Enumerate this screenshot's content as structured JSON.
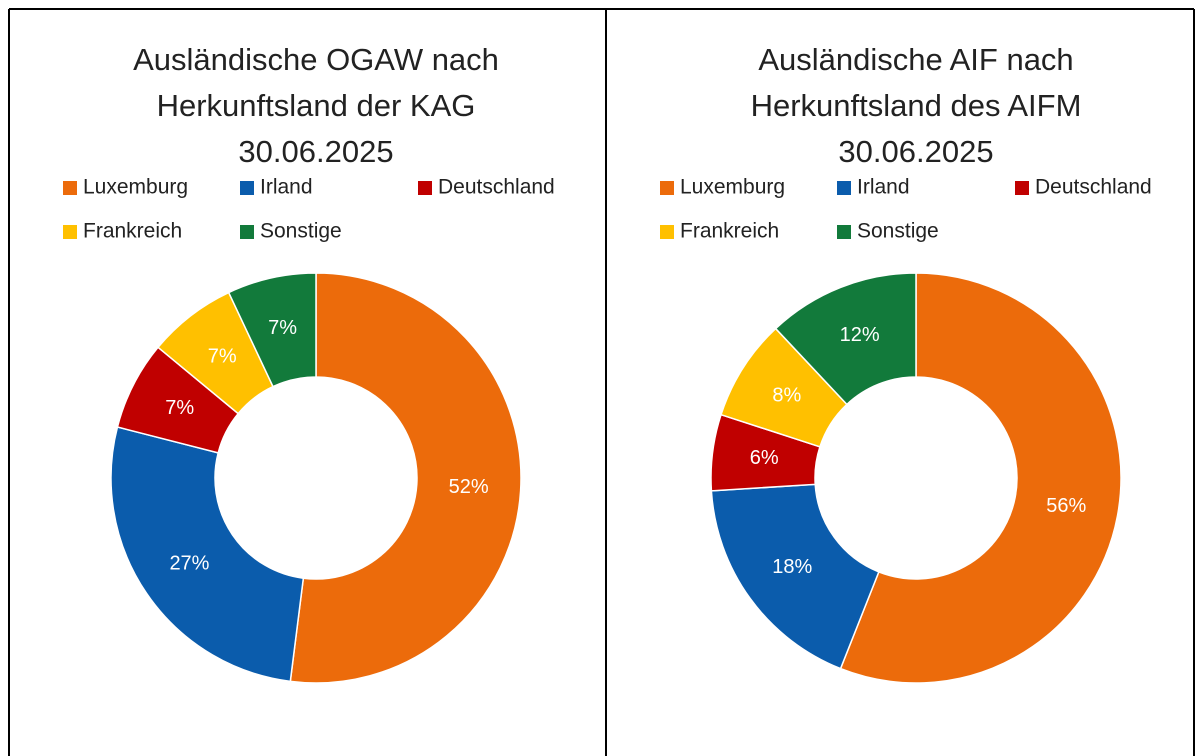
{
  "chart_data": [
    {
      "type": "donut",
      "title": [
        "Ausländische OGAW nach",
        "Herkunftsland der KAG",
        "30.06.2025"
      ],
      "categories": [
        "Luxemburg",
        "Irland",
        "Deutschland",
        "Frankreich",
        "Sonstige"
      ],
      "values": [
        52,
        27,
        7,
        7,
        7
      ],
      "value_labels": [
        "52%",
        "27%",
        "7%",
        "7%",
        "7%"
      ],
      "colors": [
        "#ec6b0b",
        "#0b5cac",
        "#c00000",
        "#ffc000",
        "#127a3b"
      ]
    },
    {
      "type": "donut",
      "title": [
        "Ausländische AIF nach",
        "Herkunftsland des AIFM",
        "30.06.2025"
      ],
      "categories": [
        "Luxemburg",
        "Irland",
        "Deutschland",
        "Frankreich",
        "Sonstige"
      ],
      "values": [
        56,
        18,
        6,
        8,
        12
      ],
      "value_labels": [
        "56%",
        "18%",
        "6%",
        "8%",
        "12%"
      ],
      "colors": [
        "#ec6b0b",
        "#0b5cac",
        "#c00000",
        "#ffc000",
        "#127a3b"
      ]
    }
  ]
}
